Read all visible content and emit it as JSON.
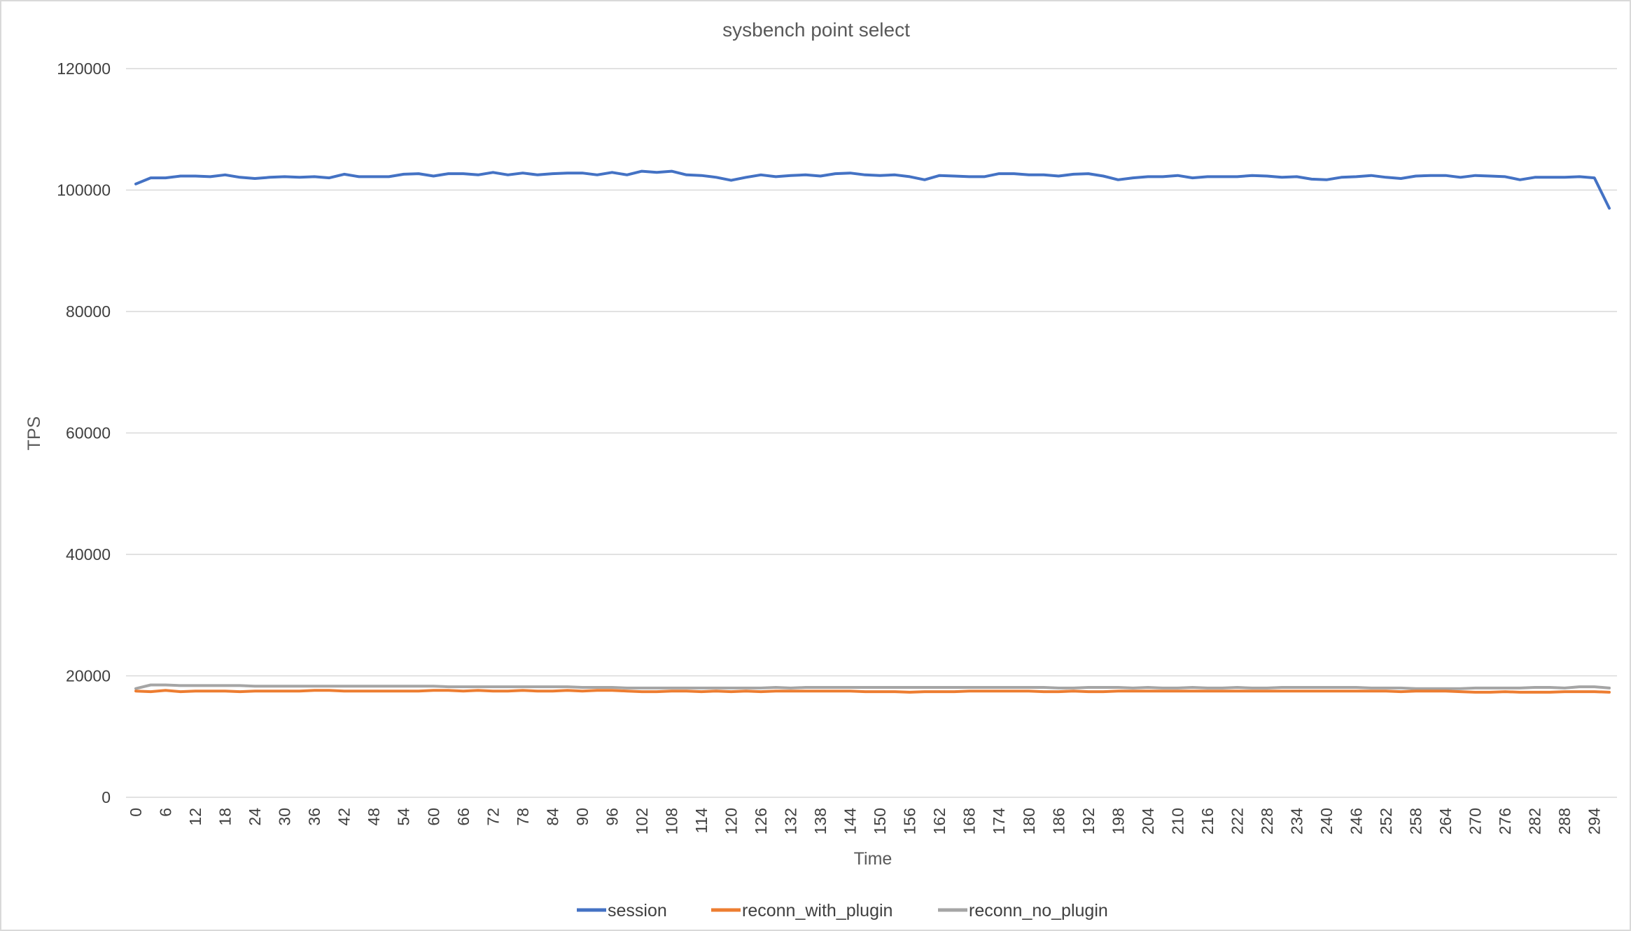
{
  "chart_data": {
    "type": "line",
    "title": "sysbench point select",
    "xlabel": "Time",
    "ylabel": "TPS",
    "ylim": [
      0,
      120000
    ],
    "y_ticks": [
      0,
      20000,
      40000,
      60000,
      80000,
      100000,
      120000
    ],
    "x": [
      0,
      3,
      6,
      9,
      12,
      15,
      18,
      21,
      24,
      27,
      30,
      33,
      36,
      39,
      42,
      45,
      48,
      51,
      54,
      57,
      60,
      63,
      66,
      69,
      72,
      75,
      78,
      81,
      84,
      87,
      90,
      93,
      96,
      99,
      102,
      105,
      108,
      111,
      114,
      117,
      120,
      123,
      126,
      129,
      132,
      135,
      138,
      141,
      144,
      147,
      150,
      153,
      156,
      159,
      162,
      165,
      168,
      171,
      174,
      177,
      180,
      183,
      186,
      189,
      192,
      195,
      198,
      201,
      204,
      207,
      210,
      213,
      216,
      219,
      222,
      225,
      228,
      231,
      234,
      237,
      240,
      243,
      246,
      249,
      252,
      255,
      258,
      261,
      264,
      267,
      270,
      273,
      276,
      279,
      282,
      285,
      288,
      291,
      294,
      297
    ],
    "x_tick_labels": [
      "0",
      "6",
      "12",
      "18",
      "24",
      "30",
      "36",
      "42",
      "48",
      "54",
      "60",
      "66",
      "72",
      "78",
      "84",
      "90",
      "96",
      "102",
      "108",
      "114",
      "120",
      "126",
      "132",
      "138",
      "144",
      "150",
      "156",
      "162",
      "168",
      "174",
      "180",
      "186",
      "192",
      "198",
      "204",
      "210",
      "216",
      "222",
      "228",
      "234",
      "240",
      "246",
      "252",
      "258",
      "264",
      "270",
      "276",
      "282",
      "288",
      "294"
    ],
    "grid": true,
    "legend_position": "bottom",
    "series": [
      {
        "name": "session",
        "color": "#4472C4",
        "values": [
          101000,
          102000,
          102000,
          102300,
          102300,
          102200,
          102500,
          102100,
          101900,
          102100,
          102200,
          102100,
          102200,
          102000,
          102600,
          102200,
          102200,
          102200,
          102600,
          102700,
          102300,
          102700,
          102700,
          102500,
          102900,
          102500,
          102800,
          102500,
          102700,
          102800,
          102800,
          102500,
          102900,
          102500,
          103100,
          102900,
          103100,
          102500,
          102400,
          102100,
          101600,
          102100,
          102500,
          102200,
          102400,
          102500,
          102300,
          102700,
          102800,
          102500,
          102400,
          102500,
          102200,
          101700,
          102400,
          102300,
          102200,
          102200,
          102700,
          102700,
          102500,
          102500,
          102300,
          102600,
          102700,
          102300,
          101700,
          102000,
          102200,
          102200,
          102400,
          102000,
          102200,
          102200,
          102200,
          102400,
          102300,
          102100,
          102200,
          101800,
          101700,
          102100,
          102200,
          102400,
          102100,
          101900,
          102300,
          102400,
          102400,
          102100,
          102400,
          102300,
          102200,
          101700,
          102100,
          102100,
          102100,
          102200,
          102000,
          97000
        ]
      },
      {
        "name": "reconn_with_plugin",
        "color": "#ED7D31",
        "values": [
          17500,
          17400,
          17600,
          17400,
          17500,
          17500,
          17500,
          17400,
          17500,
          17500,
          17500,
          17500,
          17600,
          17600,
          17500,
          17500,
          17500,
          17500,
          17500,
          17500,
          17600,
          17600,
          17500,
          17600,
          17500,
          17500,
          17600,
          17500,
          17500,
          17600,
          17500,
          17600,
          17600,
          17500,
          17400,
          17400,
          17500,
          17500,
          17400,
          17500,
          17400,
          17500,
          17400,
          17500,
          17500,
          17500,
          17500,
          17500,
          17500,
          17400,
          17400,
          17400,
          17300,
          17400,
          17400,
          17400,
          17500,
          17500,
          17500,
          17500,
          17500,
          17400,
          17400,
          17500,
          17400,
          17400,
          17500,
          17500,
          17500,
          17500,
          17500,
          17500,
          17500,
          17500,
          17500,
          17500,
          17500,
          17500,
          17500,
          17500,
          17500,
          17500,
          17500,
          17500,
          17500,
          17400,
          17500,
          17500,
          17500,
          17400,
          17300,
          17300,
          17400,
          17300,
          17300,
          17300,
          17400,
          17400,
          17400,
          17300
        ]
      },
      {
        "name": "reconn_no_plugin",
        "color": "#A5A5A5",
        "values": [
          17900,
          18500,
          18500,
          18400,
          18400,
          18400,
          18400,
          18400,
          18300,
          18300,
          18300,
          18300,
          18300,
          18300,
          18300,
          18300,
          18300,
          18300,
          18300,
          18300,
          18300,
          18200,
          18200,
          18200,
          18200,
          18200,
          18200,
          18200,
          18200,
          18200,
          18100,
          18100,
          18100,
          18000,
          18000,
          18000,
          18000,
          18000,
          18000,
          18000,
          18000,
          18000,
          18000,
          18100,
          18000,
          18100,
          18100,
          18100,
          18100,
          18100,
          18100,
          18100,
          18100,
          18100,
          18100,
          18100,
          18100,
          18100,
          18100,
          18100,
          18100,
          18100,
          18000,
          18000,
          18100,
          18100,
          18100,
          18000,
          18100,
          18000,
          18000,
          18100,
          18000,
          18000,
          18100,
          18000,
          18000,
          18100,
          18100,
          18100,
          18100,
          18100,
          18100,
          18000,
          18000,
          18000,
          17900,
          17900,
          17900,
          17900,
          18000,
          18000,
          18000,
          18000,
          18100,
          18100,
          18000,
          18200,
          18200,
          18000
        ]
      }
    ]
  }
}
